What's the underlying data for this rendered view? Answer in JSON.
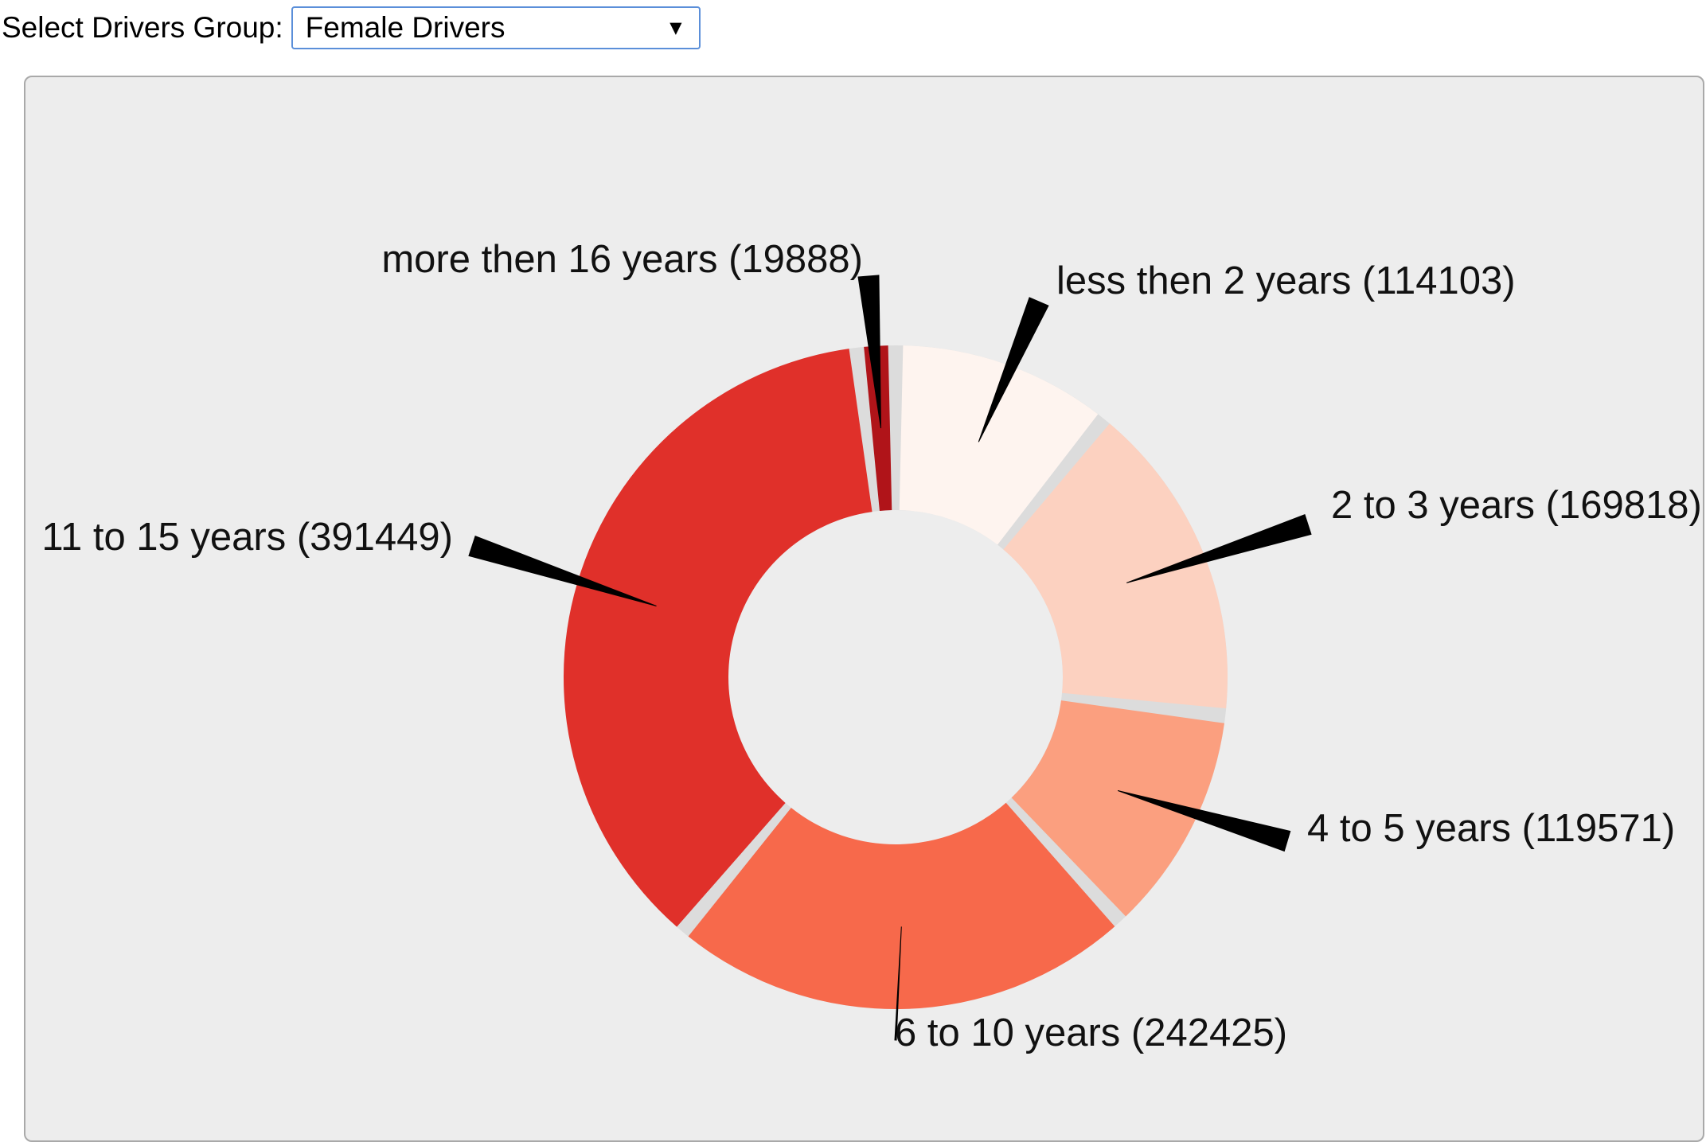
{
  "controls": {
    "label": "Select Drivers Group:",
    "selected": "Female Drivers",
    "arrow_glyph": "▼"
  },
  "chart_data": {
    "type": "pie",
    "variant": "donut",
    "title": "",
    "start_angle_deg": 0,
    "direction": "clockwise",
    "categories": [
      "less then 2 years",
      "2 to 3 years",
      "4 to 5 years",
      "6 to 10 years",
      "11 to 15 years",
      "more then 16 years"
    ],
    "values": [
      114103,
      169818,
      119571,
      242425,
      391449,
      19888
    ],
    "labels": [
      "less then 2 years (114103)",
      "2 to 3 years (169818)",
      "4 to 5 years (119571)",
      "6 to 10 years (242425)",
      "11 to 15 years (391449)",
      "more then 16 years (19888)"
    ],
    "colors": [
      "#fef4ef",
      "#fcd1c0",
      "#fb9f7f",
      "#f7694b",
      "#e0302a",
      "#b01419"
    ],
    "gap_color": "#dcdcdc",
    "background": "#ededed"
  }
}
